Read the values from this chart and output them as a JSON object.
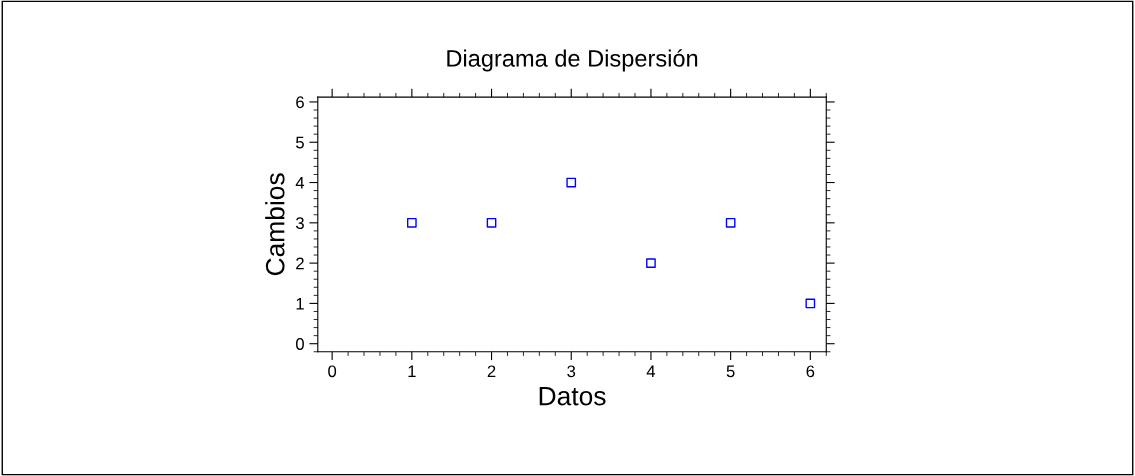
{
  "chart_data": {
    "type": "scatter",
    "title": "Diagrama de Dispersión",
    "xlabel": "Datos",
    "ylabel": "Cambios",
    "x": [
      1,
      2,
      3,
      4,
      5,
      6
    ],
    "series": [
      {
        "color": "#0000ff",
        "values": [
          3,
          3,
          4,
          2,
          3,
          1
        ]
      }
    ],
    "xlim": [
      -0.18,
      6.2
    ],
    "ylim": [
      -0.2,
      6.12
    ],
    "xticks": [
      0,
      1,
      2,
      3,
      4,
      5,
      6
    ],
    "yticks": [
      0,
      1,
      2,
      3,
      4,
      5,
      6
    ],
    "marker": "square",
    "grid": false,
    "legend": false
  }
}
